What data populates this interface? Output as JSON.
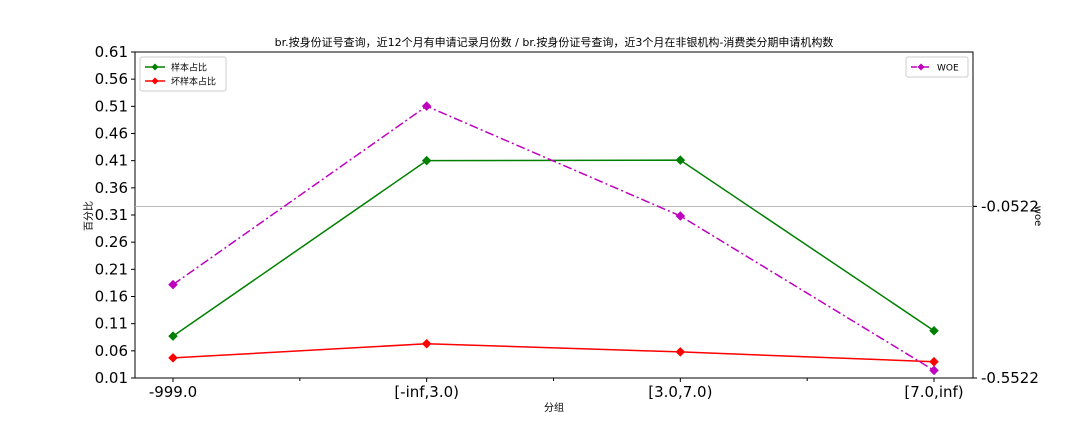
{
  "chart_data": {
    "type": "line",
    "title": "br.按身份证号查询，近12个月有申请记录月份数 / br.按身份证号查询，近3个月在非银机构-消费类分期申请机构数",
    "xlabel": "分组",
    "ylabel": "百分比",
    "y2label": "woe",
    "categories": [
      "-999.0",
      "[-inf,3.0)",
      "[3.0,7.0)",
      "[7.0,inf)"
    ],
    "ylim": [
      0.01,
      0.61
    ],
    "yticks": [
      "0.01",
      "0.06",
      "0.11",
      "0.16",
      "0.21",
      "0.26",
      "0.31",
      "0.36",
      "0.41",
      "0.46",
      "0.51",
      "0.56",
      "0.61"
    ],
    "y2lim": [
      -0.5522,
      0.3978
    ],
    "y2ticks": [
      "-0.5522",
      "-0.0522"
    ],
    "hline_y2": -0.0522,
    "series": [
      {
        "name": "样本占比",
        "axis": "left",
        "color": "#008000",
        "style": "solid",
        "values": [
          0.087,
          0.41,
          0.411,
          0.097
        ]
      },
      {
        "name": "坏样本占比",
        "axis": "left",
        "color": "#ff0000",
        "style": "solid",
        "values": [
          0.047,
          0.073,
          0.058,
          0.04
        ]
      },
      {
        "name": "WOE",
        "axis": "right",
        "color": "#bf00bf",
        "style": "dashdot",
        "values": [
          -0.28,
          0.24,
          -0.08,
          -0.53
        ]
      }
    ],
    "legend_left": [
      "样本占比",
      "坏样本占比"
    ],
    "legend_right": [
      "WOE"
    ],
    "legend_left_position": "upper-left",
    "legend_right_position": "upper-right",
    "grid": false
  }
}
